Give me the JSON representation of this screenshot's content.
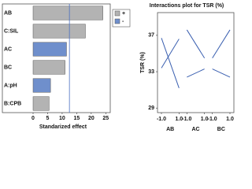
{
  "chart_data": [
    {
      "type": "hbar",
      "categories": [
        "AB",
        "C:SIL",
        "AC",
        "BC",
        "A:pH",
        "B:CPB"
      ],
      "series": [
        {
          "name": "+",
          "color": "#b3b3b3",
          "values": [
            24,
            18,
            null,
            11,
            null,
            5.5
          ]
        },
        {
          "name": "-",
          "color": "#6f8fcc",
          "values": [
            null,
            null,
            11.5,
            null,
            6,
            null
          ]
        }
      ],
      "xlim": [
        0,
        26
      ],
      "xticks": [
        0,
        5,
        10,
        15,
        20,
        25
      ],
      "xlabel": "Standarized effect",
      "reference_line": 12.5,
      "reference_color": "#4a6fc0"
    },
    {
      "type": "interaction",
      "title": "Interactions plot for TSR (%)",
      "ylabel": "TSR (%)",
      "ylim": [
        28.5,
        39.5
      ],
      "yticks": [
        29,
        33,
        37
      ],
      "panels": [
        {
          "name": "AB",
          "x": [
            -1,
            1
          ],
          "xticks": [
            {
              "value": -1,
              "label": "-1.0"
            },
            {
              "value": 1,
              "label": "1.0"
            }
          ],
          "series": [
            {
              "color": "#3a5fb0",
              "values": [
                33.4,
                36.6
              ]
            },
            {
              "color": "#3a5fb0",
              "values": [
                36.7,
                31.2
              ]
            }
          ]
        },
        {
          "name": "AC",
          "x": [
            -1,
            1
          ],
          "xticks": [
            {
              "value": -1,
              "label": "-1.0"
            },
            {
              "value": 1,
              "label": "1.0"
            }
          ],
          "series": [
            {
              "color": "#3a5fb0",
              "values": [
                37.6,
                34.5
              ]
            },
            {
              "color": "#3a5fb0",
              "values": [
                32.4,
                33.3
              ]
            }
          ]
        },
        {
          "name": "BC",
          "x": [
            -1,
            1
          ],
          "xticks": [
            {
              "value": -1,
              "label": "-1.0"
            },
            {
              "value": 1,
              "label": "1.0"
            }
          ],
          "series": [
            {
              "color": "#3a5fb0",
              "values": [
                34.5,
                37.6
              ]
            },
            {
              "color": "#3a5fb0",
              "values": [
                33.3,
                32.4
              ]
            }
          ]
        }
      ]
    }
  ]
}
